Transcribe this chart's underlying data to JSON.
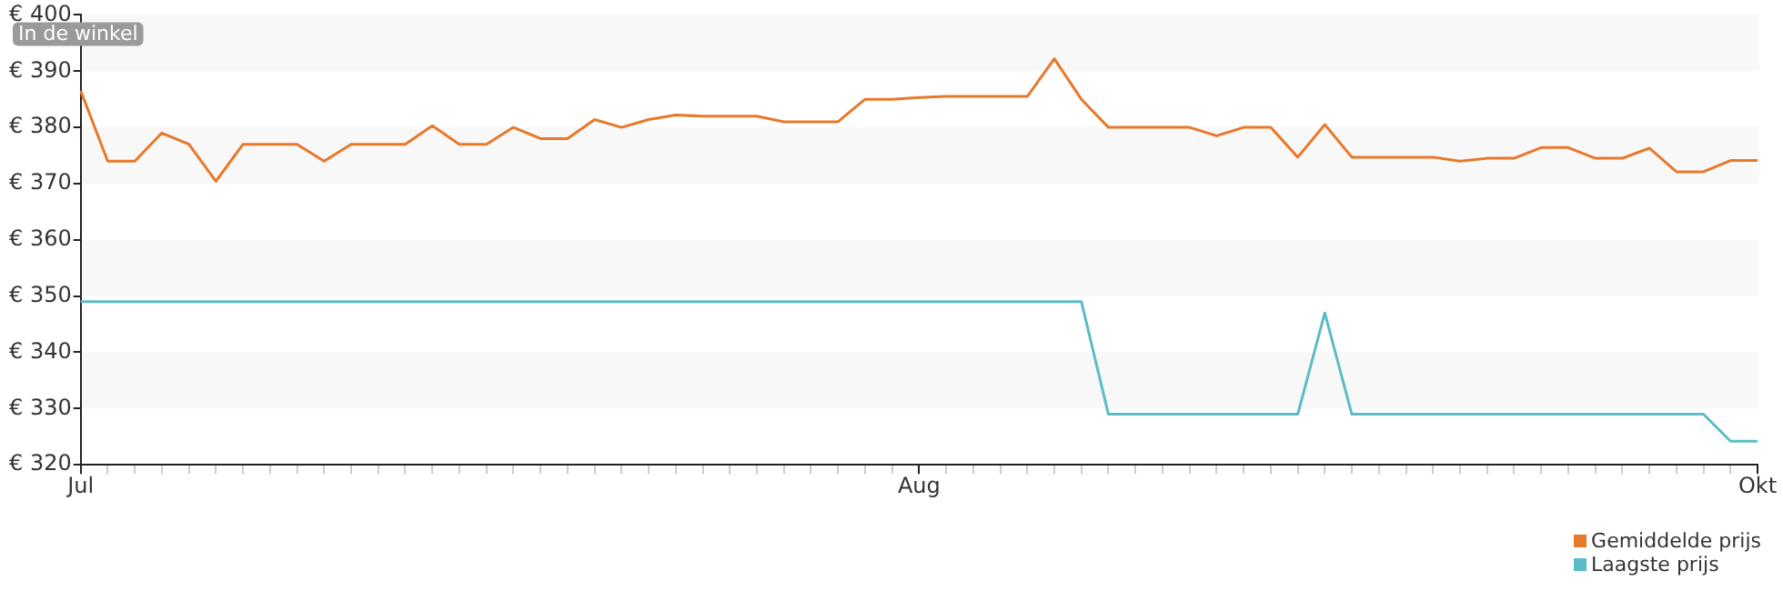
{
  "chart_data": {
    "type": "line",
    "categories": [
      "Jul",
      null,
      null,
      null,
      null,
      null,
      null,
      null,
      null,
      null,
      null,
      null,
      null,
      null,
      null,
      null,
      null,
      null,
      null,
      null,
      null,
      null,
      null,
      null,
      null,
      null,
      null,
      null,
      null,
      null,
      null,
      "Aug",
      null,
      null,
      null,
      null,
      null,
      null,
      null,
      null,
      null,
      null,
      null,
      null,
      null,
      null,
      null,
      null,
      null,
      null,
      null,
      null,
      null,
      null,
      null,
      null,
      null,
      null,
      null,
      null,
      null,
      null,
      "Okt"
    ],
    "series": [
      {
        "name": "Gemiddelde prijs",
        "color": "#e8782a",
        "values": [
          386.5,
          374,
          374,
          379,
          377,
          370.4,
          377,
          377,
          377,
          374,
          377,
          377,
          377,
          380.3,
          377,
          377,
          380,
          378,
          378,
          381.4,
          380,
          381.4,
          382.2,
          382,
          382,
          382,
          381,
          381,
          381,
          385,
          385,
          385.3,
          385.5,
          385.5,
          385.5,
          385.5,
          392.2,
          385,
          380,
          380,
          380,
          380,
          378.5,
          380,
          380,
          374.7,
          380.5,
          374.7,
          374.7,
          374.7,
          374.7,
          374,
          374.5,
          374.5,
          376.4,
          376.4,
          374.5,
          374.5,
          376.3,
          372.1,
          372.1,
          374.1,
          374.1
        ]
      },
      {
        "name": "Laagste prijs",
        "color": "#5bbcc8",
        "values": [
          349,
          349,
          349,
          349,
          349,
          349,
          349,
          349,
          349,
          349,
          349,
          349,
          349,
          349,
          349,
          349,
          349,
          349,
          349,
          349,
          349,
          349,
          349,
          349,
          349,
          349,
          349,
          349,
          349,
          349,
          349,
          349,
          349,
          349,
          349,
          349,
          349,
          349,
          329,
          329,
          329,
          329,
          329,
          329,
          329,
          329,
          347,
          329,
          329,
          329,
          329,
          329,
          329,
          329,
          329,
          329,
          329,
          329,
          329,
          329,
          329,
          324.2,
          324.2
        ]
      }
    ],
    "ylim": [
      320,
      400
    ],
    "yticks": [
      {
        "value": 320,
        "label": "€ 320"
      },
      {
        "value": 330,
        "label": "€ 330"
      },
      {
        "value": 340,
        "label": "€ 340"
      },
      {
        "value": 350,
        "label": "€ 350"
      },
      {
        "value": 360,
        "label": "€ 360"
      },
      {
        "value": 370,
        "label": "€ 370"
      },
      {
        "value": 380,
        "label": "€ 380"
      },
      {
        "value": 390,
        "label": "€ 390"
      },
      {
        "value": 400,
        "label": "€ 400"
      }
    ],
    "legend": "bottom right",
    "marker": "none",
    "line_style": "solid",
    "annotations": [
      "In de winkel"
    ]
  }
}
